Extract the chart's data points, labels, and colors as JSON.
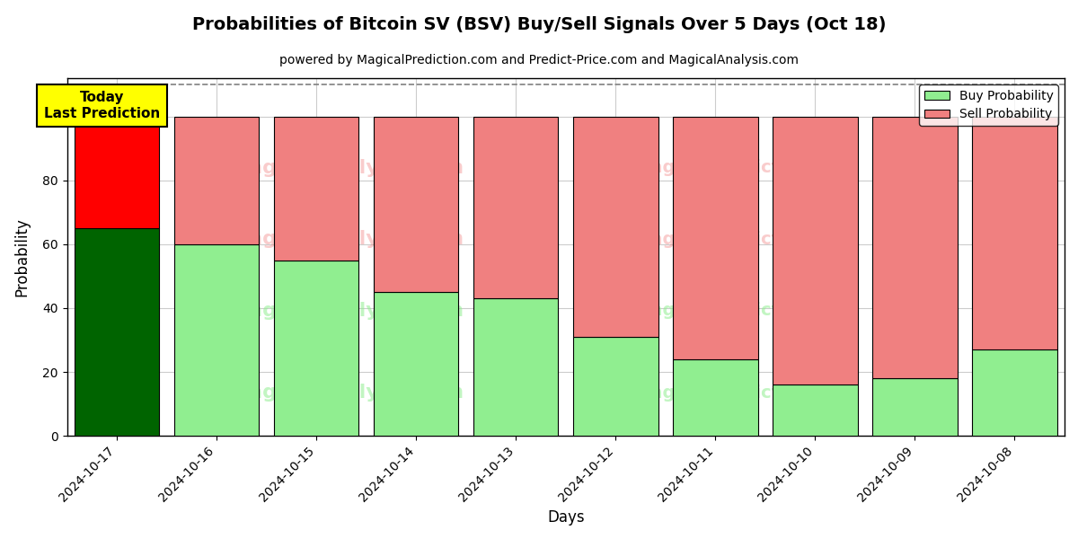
{
  "title": "Probabilities of Bitcoin SV (BSV) Buy/Sell Signals Over 5 Days (Oct 18)",
  "subtitle": "powered by MagicalPrediction.com and Predict-Price.com and MagicalAnalysis.com",
  "xlabel": "Days",
  "ylabel": "Probability",
  "dates": [
    "2024-10-17",
    "2024-10-16",
    "2024-10-15",
    "2024-10-14",
    "2024-10-13",
    "2024-10-12",
    "2024-10-11",
    "2024-10-10",
    "2024-10-09",
    "2024-10-08"
  ],
  "buy_values": [
    65,
    60,
    55,
    45,
    43,
    31,
    24,
    16,
    18,
    27
  ],
  "sell_values": [
    35,
    40,
    45,
    55,
    57,
    69,
    76,
    84,
    82,
    73
  ],
  "today_buy_color": "#006400",
  "today_sell_color": "#ff0000",
  "buy_color": "#90ee90",
  "sell_color": "#f08080",
  "today_label_bg": "#ffff00",
  "today_label_text": "Today\nLast Prediction",
  "legend_buy": "Buy Probability",
  "legend_sell": "Sell Probability",
  "ylim": [
    0,
    112
  ],
  "dashed_line_y": 110,
  "bar_width": 0.85,
  "figsize": [
    12,
    6
  ],
  "dpi": 100,
  "title_fontsize": 14,
  "subtitle_fontsize": 10,
  "grid_color": "#cccccc",
  "bg_color": "#ffffff"
}
